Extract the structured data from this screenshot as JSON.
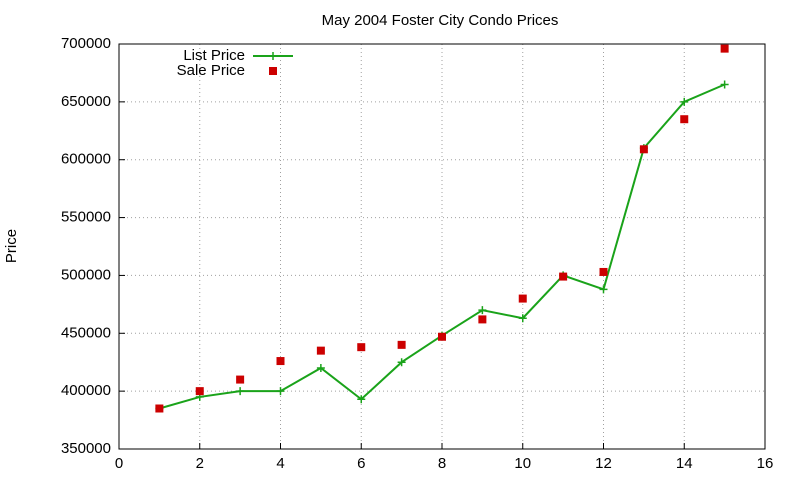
{
  "chart_data": {
    "type": "line",
    "title": "May 2004 Foster City Condo Prices",
    "y_label": "Price",
    "x": [
      1,
      2,
      3,
      4,
      5,
      6,
      7,
      8,
      9,
      10,
      11,
      12,
      13,
      14,
      15
    ],
    "series": [
      {
        "name": "List Price",
        "color": "#1aa31a",
        "style": "linespoints",
        "marker": "plus",
        "values": [
          385000,
          395000,
          400000,
          400000,
          420000,
          393000,
          425000,
          448000,
          470000,
          463000,
          500000,
          488000,
          610000,
          650000,
          665000
        ]
      },
      {
        "name": "Sale Price",
        "color": "#cc0000",
        "style": "points",
        "marker": "square",
        "values": [
          385000,
          400000,
          410000,
          426000,
          435000,
          438000,
          440000,
          447000,
          462000,
          480000,
          499000,
          503000,
          609000,
          635000,
          696000
        ]
      }
    ],
    "xlim": [
      0,
      16
    ],
    "xticks": [
      0,
      2,
      4,
      6,
      8,
      10,
      12,
      14,
      16
    ],
    "ylim": [
      350000,
      700000
    ],
    "yticks": [
      350000,
      400000,
      450000,
      500000,
      550000,
      600000,
      650000,
      700000
    ],
    "grid": true,
    "legend": "top-left"
  }
}
